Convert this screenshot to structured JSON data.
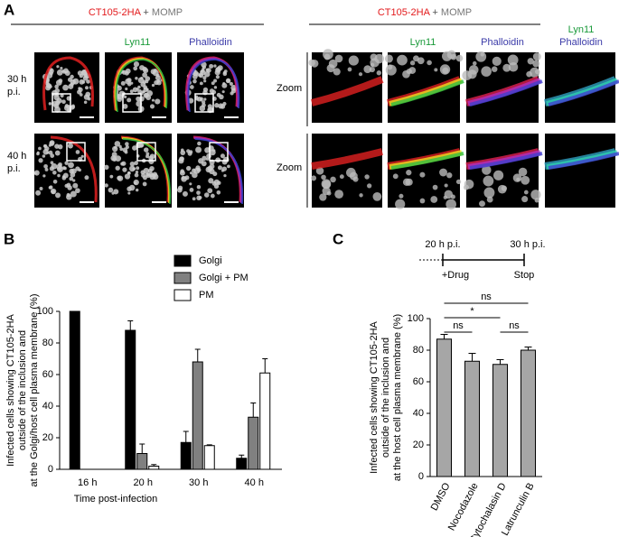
{
  "panel_a": {
    "label": "A",
    "header_left": {
      "protein": "CT105-2HA",
      "plus": "+",
      "marker": "MOMP"
    },
    "header_right": {
      "protein": "CT105-2HA",
      "plus": "+",
      "marker": "MOMP"
    },
    "col_lyn": "Lyn11",
    "col_phal": "Phalloidin",
    "col_zoom_lyn": "Lyn11",
    "col_zoom_phal": "Phalloidin",
    "col_merge_lyn": "Lyn11",
    "col_merge_phal": "Phalloidin",
    "rows": [
      {
        "time": "30 h",
        "unit": "p.i.",
        "zoom": "Zoom"
      },
      {
        "time": "40 h",
        "unit": "p.i.",
        "zoom": "Zoom"
      }
    ]
  },
  "chart_data": [
    {
      "type": "bar",
      "label": "B",
      "ylabel": [
        "Infected cells showing CT105-2HA",
        "outside of the inclusion and",
        "at the Golgi/host cell plasma membrane (%)"
      ],
      "xlabel": "Time post-infection",
      "categories": [
        "16 h",
        "20 h",
        "30 h",
        "40 h"
      ],
      "series": [
        {
          "name": "Golgi",
          "color": "#000000",
          "values": [
            100,
            88,
            17,
            7
          ],
          "errors": [
            0,
            6,
            7,
            2
          ]
        },
        {
          "name": "Golgi + PM",
          "color": "#808080",
          "values": [
            0,
            10,
            68,
            33
          ],
          "errors": [
            0,
            6,
            8,
            9
          ]
        },
        {
          "name": "PM",
          "color": "#ffffff",
          "values": [
            0,
            2,
            15,
            61
          ],
          "errors": [
            0,
            1,
            0.5,
            9
          ]
        }
      ],
      "ylim": [
        0,
        100
      ],
      "yticks": [
        0,
        20,
        40,
        60,
        80,
        100
      ]
    },
    {
      "type": "bar",
      "label": "C",
      "timeline": {
        "start": "20 h p.i.",
        "end": "30 h p.i.",
        "start_event": "+Drug",
        "end_event": "Stop"
      },
      "ylabel": [
        "Infected cells showing CT105-2HA",
        "outside of the inclusion and",
        "at the host cell plasma membrane (%)"
      ],
      "categories": [
        "DMSO",
        "Nocodazole",
        "Cytochalasin D",
        "Latrunculin B"
      ],
      "values": [
        87,
        73,
        71,
        80
      ],
      "errors": [
        3,
        5,
        3,
        2
      ],
      "color": "#a6a6a6",
      "annotations": [
        {
          "label": "ns"
        },
        {
          "label": "*"
        },
        {
          "label": "ns"
        },
        {
          "label": "ns"
        }
      ],
      "ylim": [
        0,
        100
      ],
      "yticks": [
        0,
        20,
        40,
        60,
        80,
        100
      ]
    }
  ]
}
